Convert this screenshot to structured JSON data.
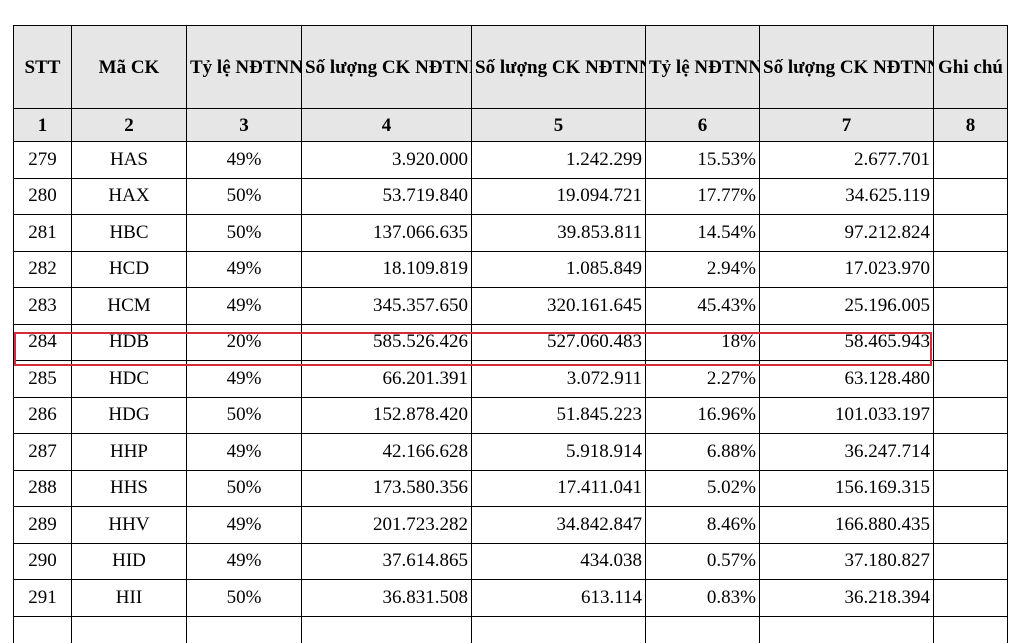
{
  "headers": [
    "STT",
    "Mã CK",
    "Tỷ lệ NĐTNN sở hữu tối đa",
    "Số lượng CK NĐTNN được phép nắm giữ",
    "Số lượng CK NĐTNN đang nắm giữ",
    "Tỷ lệ NĐTNN đang nắm giữ",
    "Số lượng CK NĐTNN được nắm giữ thêm +/vượt room (-)",
    "Ghi chú"
  ],
  "column_numbers": [
    "1",
    "2",
    "3",
    "4",
    "5",
    "6",
    "7",
    "8"
  ],
  "rows": [
    {
      "stt": "279",
      "ma": "HAS",
      "tyle_max": "49%",
      "duoc_phep": "3.920.000",
      "dang_nam": "1.242.299",
      "tyle_dang": "15.53%",
      "them": "2.677.701",
      "ghichu": ""
    },
    {
      "stt": "280",
      "ma": "HAX",
      "tyle_max": "50%",
      "duoc_phep": "53.719.840",
      "dang_nam": "19.094.721",
      "tyle_dang": "17.77%",
      "them": "34.625.119",
      "ghichu": ""
    },
    {
      "stt": "281",
      "ma": "HBC",
      "tyle_max": "50%",
      "duoc_phep": "137.066.635",
      "dang_nam": "39.853.811",
      "tyle_dang": "14.54%",
      "them": "97.212.824",
      "ghichu": ""
    },
    {
      "stt": "282",
      "ma": "HCD",
      "tyle_max": "49%",
      "duoc_phep": "18.109.819",
      "dang_nam": "1.085.849",
      "tyle_dang": "2.94%",
      "them": "17.023.970",
      "ghichu": ""
    },
    {
      "stt": "283",
      "ma": "HCM",
      "tyle_max": "49%",
      "duoc_phep": "345.357.650",
      "dang_nam": "320.161.645",
      "tyle_dang": "45.43%",
      "them": "25.196.005",
      "ghichu": ""
    },
    {
      "stt": "284",
      "ma": "HDB",
      "tyle_max": "20%",
      "duoc_phep": "585.526.426",
      "dang_nam": "527.060.483",
      "tyle_dang": "18%",
      "them": "58.465.943",
      "ghichu": ""
    },
    {
      "stt": "285",
      "ma": "HDC",
      "tyle_max": "49%",
      "duoc_phep": "66.201.391",
      "dang_nam": "3.072.911",
      "tyle_dang": "2.27%",
      "them": "63.128.480",
      "ghichu": ""
    },
    {
      "stt": "286",
      "ma": "HDG",
      "tyle_max": "50%",
      "duoc_phep": "152.878.420",
      "dang_nam": "51.845.223",
      "tyle_dang": "16.96%",
      "them": "101.033.197",
      "ghichu": ""
    },
    {
      "stt": "287",
      "ma": "HHP",
      "tyle_max": "49%",
      "duoc_phep": "42.166.628",
      "dang_nam": "5.918.914",
      "tyle_dang": "6.88%",
      "them": "36.247.714",
      "ghichu": ""
    },
    {
      "stt": "288",
      "ma": "HHS",
      "tyle_max": "50%",
      "duoc_phep": "173.580.356",
      "dang_nam": "17.411.041",
      "tyle_dang": "5.02%",
      "them": "156.169.315",
      "ghichu": ""
    },
    {
      "stt": "289",
      "ma": "HHV",
      "tyle_max": "49%",
      "duoc_phep": "201.723.282",
      "dang_nam": "34.842.847",
      "tyle_dang": "8.46%",
      "them": "166.880.435",
      "ghichu": ""
    },
    {
      "stt": "290",
      "ma": "HID",
      "tyle_max": "49%",
      "duoc_phep": "37.614.865",
      "dang_nam": "434.038",
      "tyle_dang": "0.57%",
      "them": "37.180.827",
      "ghichu": ""
    },
    {
      "stt": "291",
      "ma": "HII",
      "tyle_max": "50%",
      "duoc_phep": "36.831.508",
      "dang_nam": "613.114",
      "tyle_dang": "0.83%",
      "them": "36.218.394",
      "ghichu": ""
    }
  ],
  "highlighted_row": "284",
  "colors": {
    "header_bg": "#e7e6e6",
    "highlight_border": "#d62c36",
    "border": "#000000"
  }
}
